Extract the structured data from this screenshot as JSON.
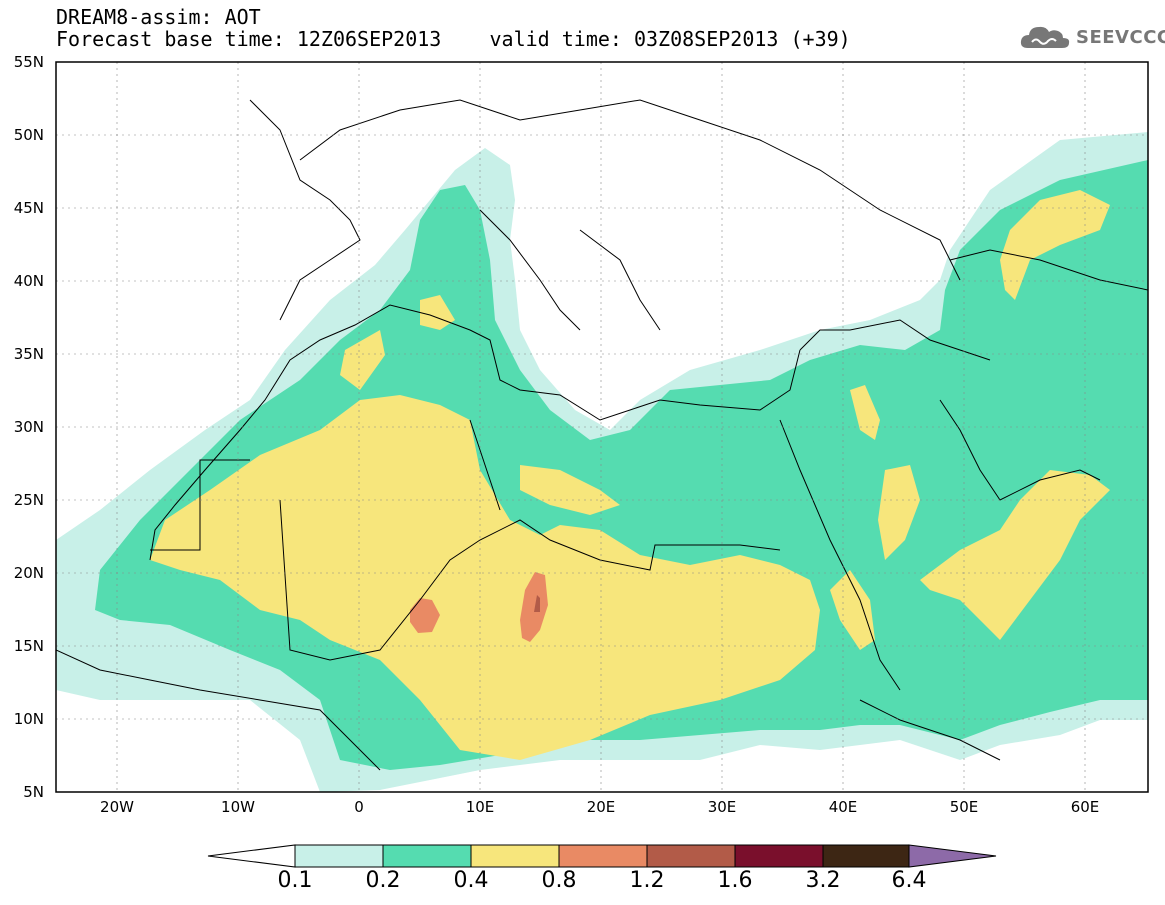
{
  "header": {
    "line1": "DREAM8-assim: AOT",
    "base_label": "Forecast base time: 12Z06SEP2013",
    "valid_label": "valid time: 03Z08SEP2013 (+39)"
  },
  "logo": {
    "text": "SEEVCCC",
    "icon": "cloud-icon"
  },
  "map": {
    "lat_labels": [
      "55N",
      "50N",
      "45N",
      "40N",
      "35N",
      "30N",
      "25N",
      "20N",
      "15N",
      "10N",
      "5N"
    ],
    "lon_labels": [
      "20W",
      "10W",
      "0",
      "10E",
      "20E",
      "30E",
      "40E",
      "50E",
      "60E"
    ],
    "grid": true
  },
  "colorbar": {
    "labels": [
      "0.1",
      "0.2",
      "0.4",
      "0.8",
      "1.2",
      "1.6",
      "3.2",
      "6.4"
    ],
    "colors": [
      "#ffffff",
      "#c8f0e8",
      "#55dcb0",
      "#f7e67c",
      "#e98a64",
      "#b25b48",
      "#7a0f2c",
      "#3d2614",
      "#8d6aa8"
    ]
  }
}
